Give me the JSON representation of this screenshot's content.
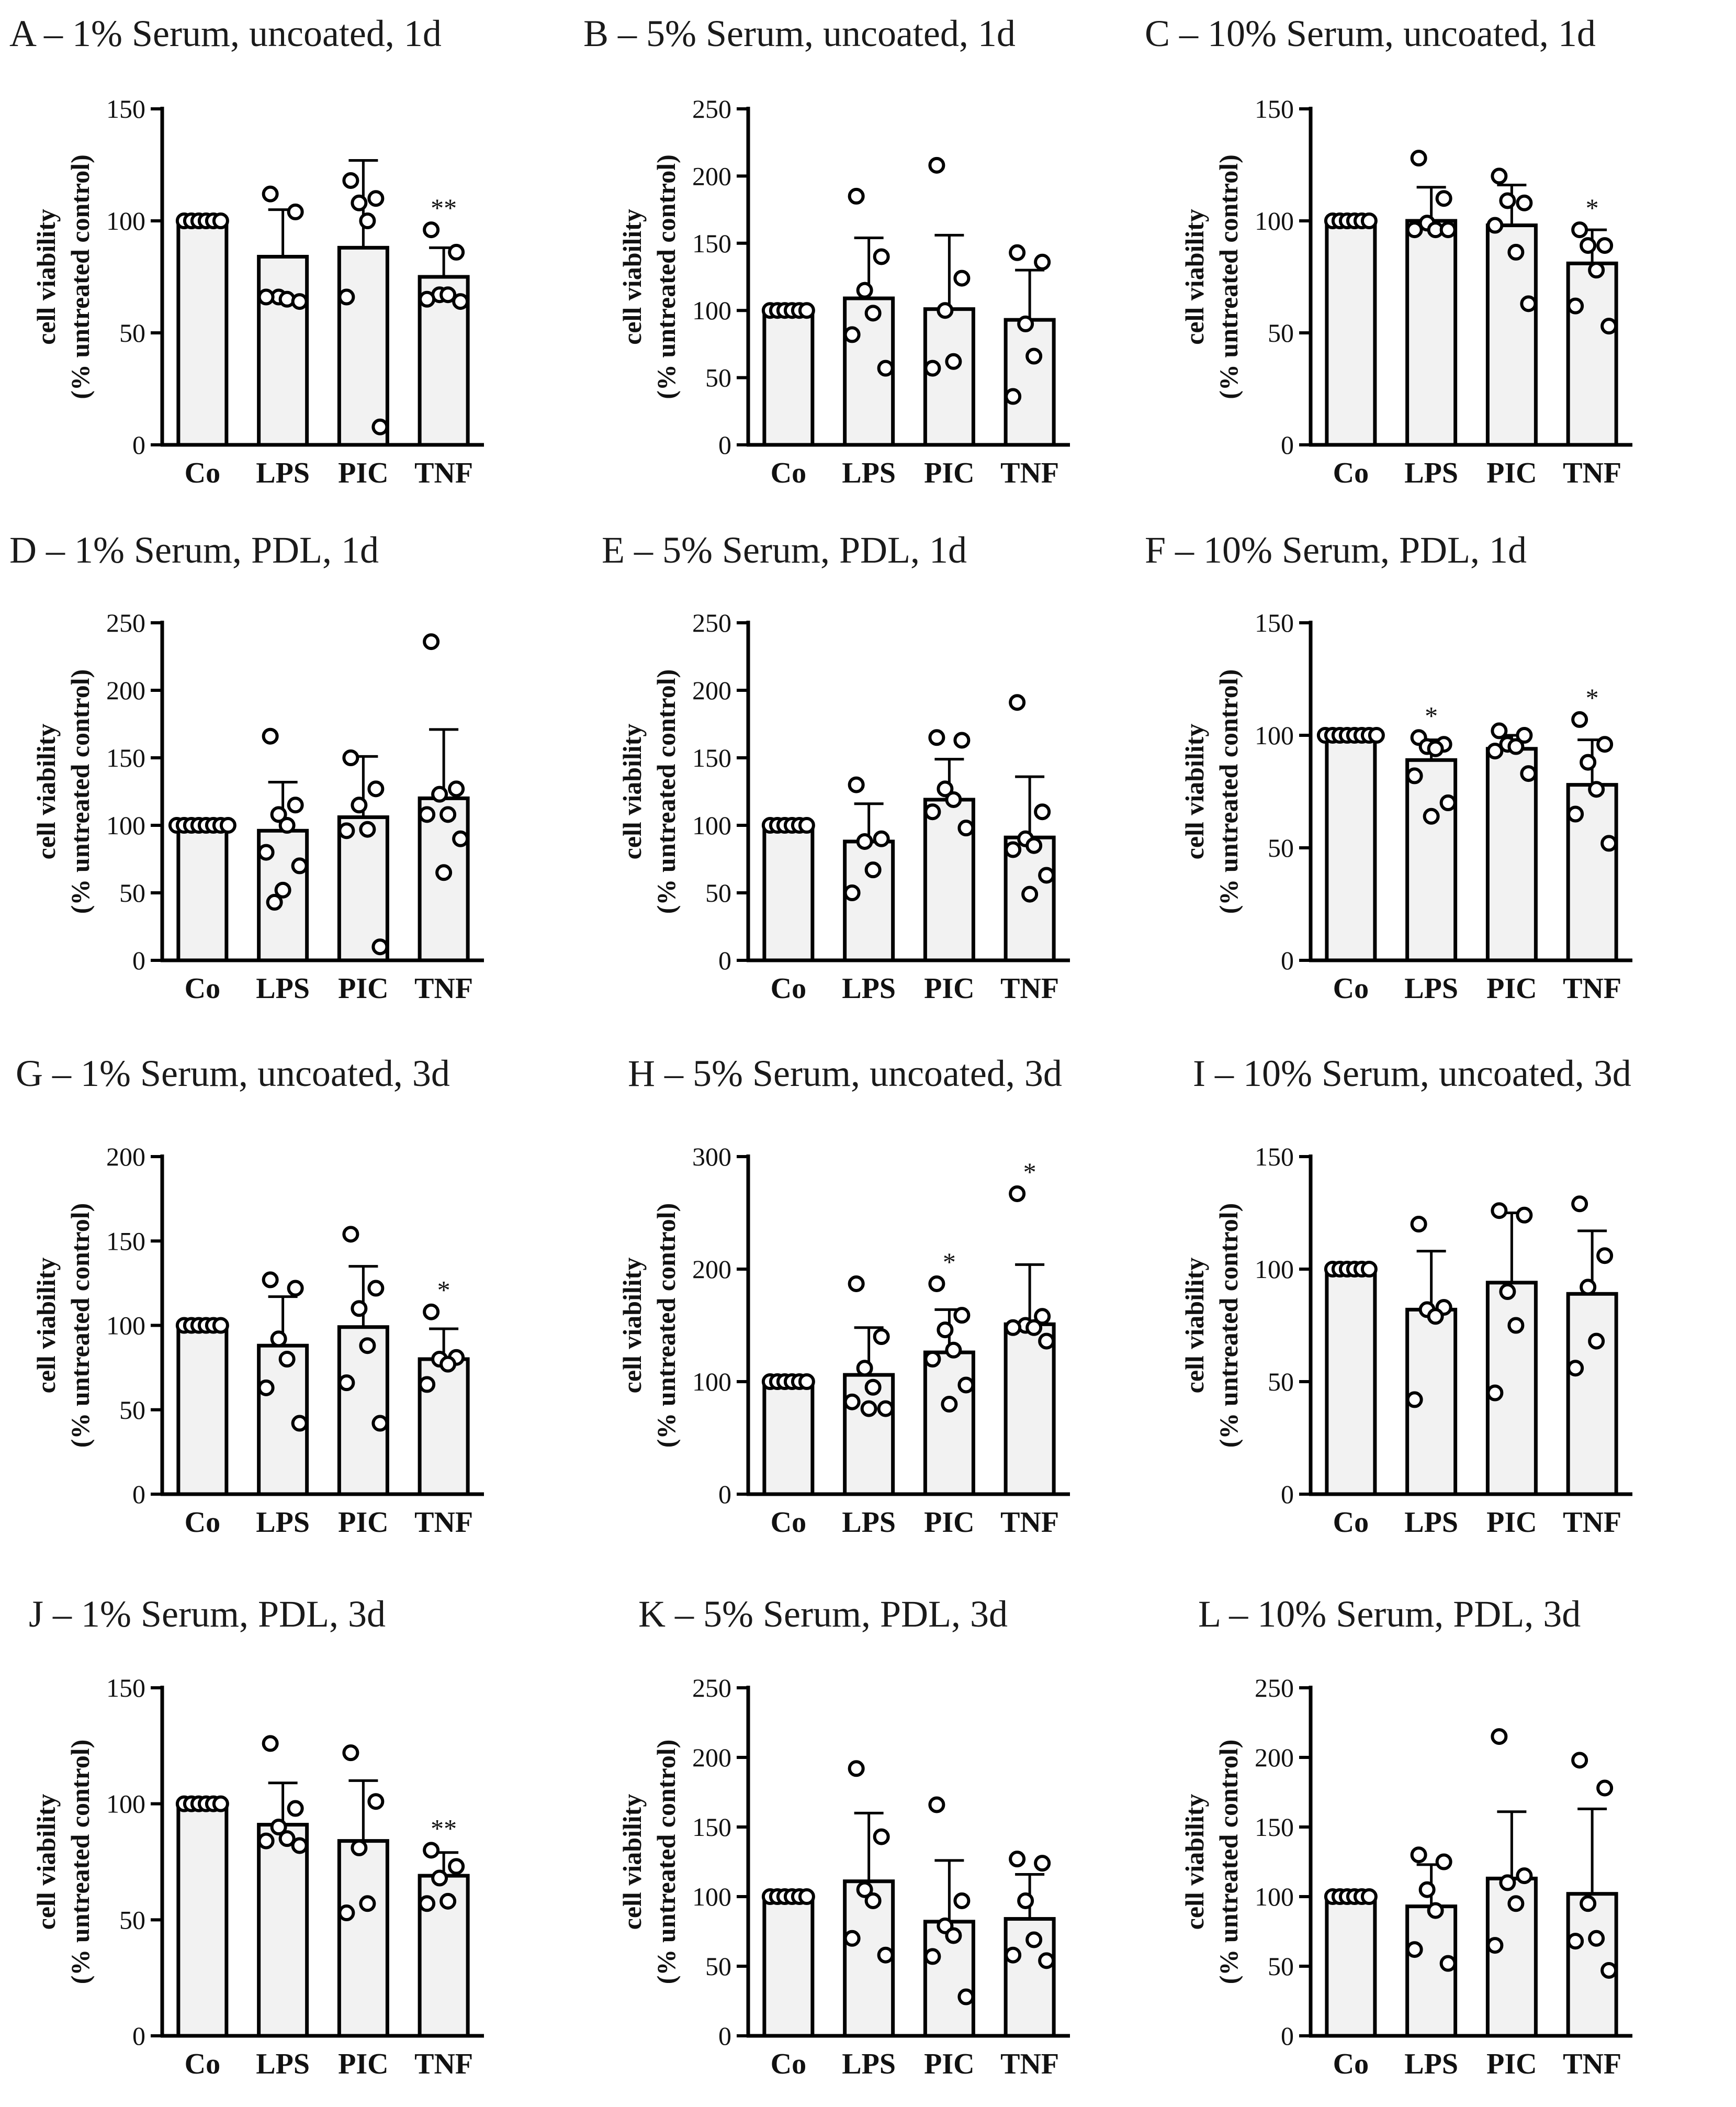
{
  "figure": {
    "categories": [
      "Co",
      "LPS",
      "PIC",
      "TNF"
    ],
    "ylabel_line1": "cell viability",
    "ylabel_line2": "(% untreated control)"
  },
  "chart_data": [
    {
      "panel": "A",
      "title": "A – 1% Serum, uncoated, 1d",
      "type": "bar",
      "categories": [
        "Co",
        "LPS",
        "PIC",
        "TNF"
      ],
      "ylim": [
        0,
        150
      ],
      "yticks": [
        0,
        50,
        100,
        150
      ],
      "ylabel": "cell viability (% untreated control)",
      "values": [
        100,
        84,
        88,
        75
      ],
      "errors": [
        0,
        21,
        39,
        13
      ],
      "points": [
        [
          100,
          100,
          100,
          100,
          100,
          100
        ],
        [
          112,
          104,
          66,
          65,
          66,
          64
        ],
        [
          118,
          110,
          108,
          100,
          66,
          8
        ],
        [
          96,
          86,
          67,
          67,
          65,
          64
        ]
      ],
      "annotations": [
        "",
        "",
        "",
        "**"
      ]
    },
    {
      "panel": "B",
      "title": "B – 5% Serum, uncoated, 1d",
      "type": "bar",
      "categories": [
        "Co",
        "LPS",
        "PIC",
        "TNF"
      ],
      "ylim": [
        0,
        250
      ],
      "yticks": [
        0,
        50,
        100,
        150,
        200,
        250
      ],
      "ylabel": "cell viability (% untreated control)",
      "values": [
        100,
        109,
        101,
        93
      ],
      "errors": [
        0,
        45,
        55,
        37
      ],
      "points": [
        [
          100,
          100,
          100,
          100,
          100,
          100
        ],
        [
          185,
          140,
          115,
          98,
          82,
          57
        ],
        [
          208,
          124,
          100,
          62,
          57
        ],
        [
          143,
          136,
          90,
          66,
          36
        ]
      ],
      "annotations": [
        "",
        "",
        "",
        ""
      ]
    },
    {
      "panel": "C",
      "title": "C – 10% Serum, uncoated, 1d",
      "type": "bar",
      "categories": [
        "Co",
        "LPS",
        "PIC",
        "TNF"
      ],
      "ylim": [
        0,
        150
      ],
      "yticks": [
        0,
        50,
        100,
        150
      ],
      "ylabel": "cell viability (% untreated control)",
      "values": [
        100,
        100,
        98,
        81
      ],
      "errors": [
        0,
        15,
        18,
        15
      ],
      "points": [
        [
          100,
          100,
          100,
          100,
          100,
          100
        ],
        [
          128,
          110,
          99,
          96,
          96,
          96
        ],
        [
          120,
          108,
          109,
          86,
          98,
          63
        ],
        [
          96,
          89,
          89,
          78,
          62,
          53
        ]
      ],
      "annotations": [
        "",
        "",
        "",
        "*"
      ]
    },
    {
      "panel": "D",
      "title": "D – 1% Serum, PDL, 1d",
      "type": "bar",
      "categories": [
        "Co",
        "LPS",
        "PIC",
        "TNF"
      ],
      "ylim": [
        0,
        250
      ],
      "yticks": [
        0,
        50,
        100,
        150,
        200,
        250
      ],
      "ylabel": "cell viability (% untreated control)",
      "values": [
        100,
        96,
        106,
        120
      ],
      "errors": [
        0,
        36,
        45,
        51
      ],
      "points": [
        [
          100,
          100,
          100,
          100,
          100,
          100,
          100,
          100
        ],
        [
          166,
          115,
          108,
          100,
          80,
          70,
          52,
          43
        ],
        [
          150,
          127,
          115,
          97,
          96,
          10
        ],
        [
          236,
          127,
          123,
          108,
          108,
          90,
          65
        ]
      ],
      "annotations": [
        "",
        "",
        "",
        ""
      ]
    },
    {
      "panel": "E",
      "title": "E – 5% Serum, PDL, 1d",
      "type": "bar",
      "categories": [
        "Co",
        "LPS",
        "PIC",
        "TNF"
      ],
      "ylim": [
        0,
        250
      ],
      "yticks": [
        0,
        50,
        100,
        150,
        200,
        250
      ],
      "ylabel": "cell viability (% untreated control)",
      "values": [
        100,
        88,
        119,
        91
      ],
      "errors": [
        0,
        28,
        30,
        45
      ],
      "points": [
        [
          100,
          100,
          100,
          100,
          100,
          100
        ],
        [
          130,
          90,
          88,
          67,
          50
        ],
        [
          165,
          163,
          127,
          119,
          110,
          98
        ],
        [
          191,
          110,
          90,
          85,
          82,
          63,
          49
        ]
      ],
      "annotations": [
        "",
        "",
        "",
        ""
      ]
    },
    {
      "panel": "F",
      "title": "F – 10% Serum, PDL, 1d",
      "type": "bar",
      "categories": [
        "Co",
        "LPS",
        "PIC",
        "TNF"
      ],
      "ylim": [
        0,
        150
      ],
      "yticks": [
        0,
        50,
        100,
        150
      ],
      "ylabel": "cell viability (% untreated control)",
      "values": [
        100,
        89,
        94,
        78
      ],
      "errors": [
        0,
        9,
        6,
        20
      ],
      "points": [
        [
          100,
          100,
          100,
          100,
          100,
          100,
          100,
          100
        ],
        [
          99,
          96,
          95,
          94,
          82,
          70,
          64
        ],
        [
          102,
          100,
          96,
          95,
          93,
          83
        ],
        [
          107,
          96,
          88,
          76,
          65,
          52
        ]
      ],
      "annotations": [
        "",
        "*",
        "",
        "*"
      ]
    },
    {
      "panel": "G",
      "title": "G – 1% Serum, uncoated, 3d",
      "type": "bar",
      "categories": [
        "Co",
        "LPS",
        "PIC",
        "TNF"
      ],
      "ylim": [
        0,
        200
      ],
      "yticks": [
        0,
        50,
        100,
        150,
        200
      ],
      "ylabel": "cell viability (% untreated control)",
      "values": [
        100,
        88,
        99,
        80
      ],
      "errors": [
        0,
        29,
        36,
        18
      ],
      "points": [
        [
          100,
          100,
          100,
          100,
          100,
          100
        ],
        [
          127,
          122,
          92,
          80,
          63,
          42
        ],
        [
          154,
          122,
          110,
          88,
          66,
          42
        ],
        [
          108,
          81,
          80,
          77,
          65
        ]
      ],
      "annotations": [
        "",
        "",
        "",
        "*"
      ]
    },
    {
      "panel": "H",
      "title": "H – 5% Serum, uncoated, 3d",
      "type": "bar",
      "categories": [
        "Co",
        "LPS",
        "PIC",
        "TNF"
      ],
      "ylim": [
        0,
        300
      ],
      "yticks": [
        0,
        100,
        200,
        300
      ],
      "ylabel": "cell viability (% untreated control)",
      "values": [
        100,
        106,
        126,
        151
      ],
      "errors": [
        0,
        42,
        38,
        53
      ],
      "points": [
        [
          100,
          100,
          100,
          100,
          100,
          100
        ],
        [
          187,
          140,
          112,
          95,
          82,
          76,
          76
        ],
        [
          187,
          159,
          146,
          128,
          120,
          97,
          80
        ],
        [
          267,
          158,
          150,
          148,
          148,
          136
        ]
      ],
      "annotations": [
        "",
        "",
        "*",
        "*"
      ]
    },
    {
      "panel": "I",
      "title": "I – 10% Serum, uncoated, 3d",
      "type": "bar",
      "categories": [
        "Co",
        "LPS",
        "PIC",
        "TNF"
      ],
      "ylim": [
        0,
        150
      ],
      "yticks": [
        0,
        50,
        100,
        150
      ],
      "ylabel": "cell viability (% untreated control)",
      "values": [
        100,
        82,
        94,
        89
      ],
      "errors": [
        0,
        26,
        31,
        28
      ],
      "points": [
        [
          100,
          100,
          100,
          100,
          100,
          100
        ],
        [
          120,
          83,
          82,
          79,
          42
        ],
        [
          126,
          124,
          90,
          75,
          45
        ],
        [
          129,
          106,
          92,
          68,
          56
        ]
      ],
      "annotations": [
        "",
        "",
        "",
        ""
      ]
    },
    {
      "panel": "J",
      "title": "J – 1% Serum, PDL, 3d",
      "type": "bar",
      "categories": [
        "Co",
        "LPS",
        "PIC",
        "TNF"
      ],
      "ylim": [
        0,
        150
      ],
      "yticks": [
        0,
        50,
        100,
        150
      ],
      "ylabel": "cell viability (% untreated control)",
      "values": [
        100,
        91,
        84,
        69
      ],
      "errors": [
        0,
        18,
        26,
        10
      ],
      "points": [
        [
          100,
          100,
          100,
          100,
          100,
          100
        ],
        [
          126,
          98,
          90,
          85,
          84,
          82
        ],
        [
          122,
          101,
          81,
          57,
          53
        ],
        [
          80,
          73,
          68,
          58,
          57
        ]
      ],
      "annotations": [
        "",
        "",
        "",
        "**"
      ]
    },
    {
      "panel": "K",
      "title": "K – 5% Serum, PDL, 3d",
      "type": "bar",
      "categories": [
        "Co",
        "LPS",
        "PIC",
        "TNF"
      ],
      "ylim": [
        0,
        250
      ],
      "yticks": [
        0,
        50,
        100,
        150,
        200,
        250
      ],
      "ylabel": "cell viability (% untreated control)",
      "values": [
        100,
        111,
        82,
        84
      ],
      "errors": [
        0,
        49,
        44,
        32
      ],
      "points": [
        [
          100,
          100,
          100,
          100,
          100,
          100
        ],
        [
          192,
          143,
          105,
          97,
          70,
          58
        ],
        [
          166,
          97,
          79,
          72,
          57,
          28
        ],
        [
          127,
          124,
          97,
          69,
          58,
          54
        ]
      ],
      "annotations": [
        "",
        "",
        "",
        ""
      ]
    },
    {
      "panel": "L",
      "title": "L – 10% Serum, PDL, 3d",
      "type": "bar",
      "categories": [
        "Co",
        "LPS",
        "PIC",
        "TNF"
      ],
      "ylim": [
        0,
        250
      ],
      "yticks": [
        0,
        50,
        100,
        150,
        200,
        250
      ],
      "ylabel": "cell viability (% untreated control)",
      "values": [
        100,
        93,
        113,
        102
      ],
      "errors": [
        0,
        30,
        48,
        61
      ],
      "points": [
        [
          100,
          100,
          100,
          100,
          100,
          100
        ],
        [
          130,
          125,
          105,
          90,
          62,
          52
        ],
        [
          215,
          115,
          110,
          95,
          65
        ],
        [
          198,
          178,
          95,
          70,
          68,
          47
        ]
      ],
      "annotations": [
        "",
        "",
        "",
        ""
      ]
    }
  ]
}
